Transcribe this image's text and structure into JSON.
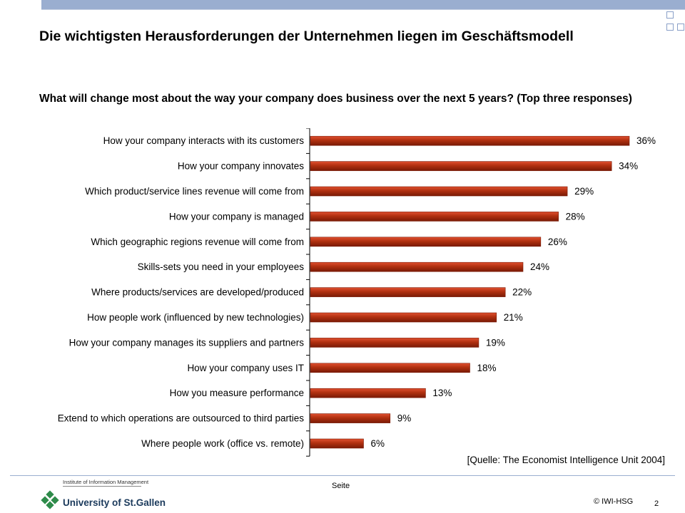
{
  "header": {
    "title": "Die wichtigsten Herausforderungen der Unternehmen liegen im Geschäftsmodell",
    "question": "What will change most about the way your company does business over the next 5 years? (Top three responses)"
  },
  "chart_data": {
    "type": "bar",
    "orientation": "horizontal",
    "categories": [
      "How your company interacts with its customers",
      "How your company innovates",
      "Which product/service lines revenue will come from",
      "How your company is managed",
      "Which geographic regions revenue will come from",
      "Skills-sets you need in your employees",
      "Where products/services are developed/produced",
      "How people work (influenced by new technologies)",
      "How your company manages its suppliers and partners",
      "How your company uses IT",
      "How you measure performance",
      "Extend to which operations are outsourced to third parties",
      "Where people work (office vs. remote)"
    ],
    "values": [
      36,
      34,
      29,
      28,
      26,
      24,
      22,
      21,
      19,
      18,
      13,
      9,
      6
    ],
    "value_labels": [
      "36%",
      "34%",
      "29%",
      "28%",
      "26%",
      "24%",
      "22%",
      "21%",
      "19%",
      "18%",
      "13%",
      "9%",
      "6%"
    ],
    "xlim": [
      0,
      36
    ],
    "grid": false,
    "bar_color": "#b03010",
    "bar_color_light": "#e05030",
    "bar_color_dark": "#7a1a06"
  },
  "footer": {
    "source": "[Quelle: The Economist Intelligence Unit 2004]",
    "page_label": "Seite",
    "copyright": "© IWI-HSG",
    "page_number": "2",
    "logo_subtitle": "Institute of Information Management",
    "logo_name": "University of St.Gallen"
  },
  "colors": {
    "accent": "#9aaed0",
    "logo_green": "#2e8b4a",
    "logo_blue": "#1b3a5c"
  }
}
